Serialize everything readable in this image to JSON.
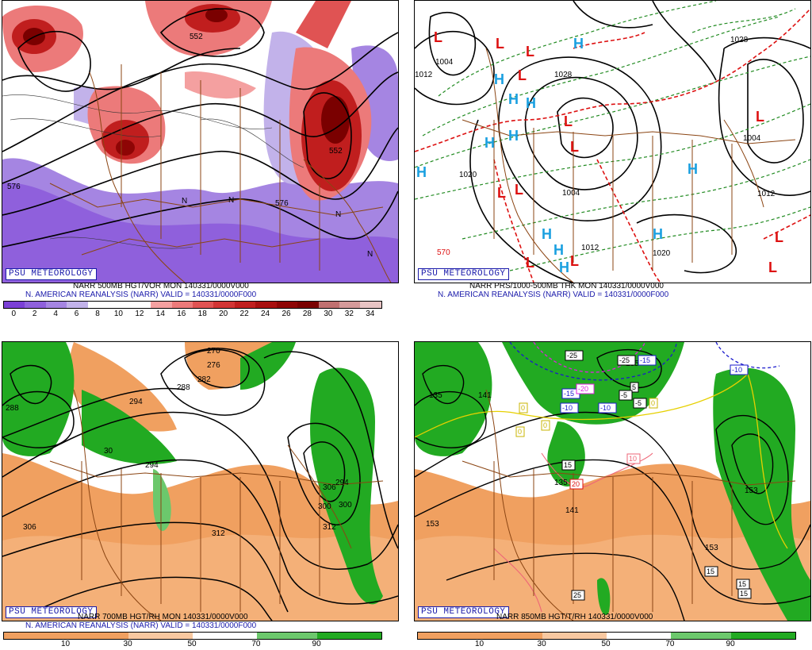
{
  "panels": [
    {
      "id": "p1",
      "logo": "PSU METEOROLOGY",
      "line1": "NARR 500MB HGT/VOR MON 140331/0000V000",
      "line2": "N. AMERICAN REANALYSIS (NARR) VALID = 140331/0000F000",
      "colorbar_labels": [
        "0",
        "2",
        "4",
        "6",
        "8",
        "10",
        "12",
        "14",
        "16",
        "18",
        "20",
        "22",
        "24",
        "26",
        "28",
        "30",
        "32",
        "34"
      ],
      "colorbar_colors": [
        "#7b3fd6",
        "#8f60dc",
        "#a585e2",
        "#c2b2ea",
        "#ffffff",
        "#ffffff",
        "#ffffff",
        "#f4a0a0",
        "#ec7a7a",
        "#e05353",
        "#d23535",
        "#c01e1e",
        "#a80f0f",
        "#8e0505",
        "#7a0000",
        "#c07070",
        "#d59a9a",
        "#e8c4c4"
      ],
      "map_labels": [
        "576",
        "576",
        "552",
        "552",
        "N",
        "N",
        "N",
        "N"
      ]
    },
    {
      "id": "p2",
      "logo": "PSU METEOROLOGY",
      "line1": "NARR PRS/1000-500MB THK MON 140331/0000V000",
      "line2": "N. AMERICAN REANALYSIS (NARR) VALID = 140331/0000F000",
      "map_labels": [
        "1004",
        "1020",
        "1004",
        "1012",
        "1020",
        "1028",
        "1004",
        "1012",
        "570",
        "1012",
        "1028"
      ],
      "highs": [
        "H",
        "H",
        "H",
        "H",
        "H",
        "H",
        "H",
        "H",
        "H",
        "H",
        "H",
        "H"
      ],
      "lows": [
        "L",
        "L",
        "L",
        "L",
        "L",
        "L",
        "L",
        "L",
        "L",
        "L",
        "L",
        "L",
        "L"
      ]
    },
    {
      "id": "p3",
      "logo": "PSU METEOROLOGY",
      "line1": "NARR 700MB HGT/RH MON 140331/0000V000",
      "line2": "N. AMERICAN REANALYSIS (NARR) VALID = 140331/0000F000",
      "colorbar_labels": [
        "10",
        "30",
        "50",
        "70",
        "90"
      ],
      "map_labels": [
        "270",
        "276",
        "282",
        "288",
        "294",
        "294",
        "300",
        "306",
        "312",
        "312",
        "306",
        "300",
        "294",
        "288",
        "30"
      ]
    },
    {
      "id": "p4",
      "logo": "PSU METEOROLOGY",
      "line1": "NARR 850MB HGT/T/RH 140331/0000V000",
      "colorbar_labels": [
        "10",
        "30",
        "50",
        "70",
        "90"
      ],
      "map_labels": [
        "135",
        "135",
        "141",
        "153",
        "141",
        "135",
        "153",
        "153"
      ],
      "boxed_labels": [
        "-25",
        "-25",
        "-15",
        "-20",
        "-10",
        "-5",
        "-10",
        "15",
        "20",
        "10",
        "-15",
        "25",
        "15",
        "15",
        "15",
        "0",
        "0",
        "0",
        "0",
        "5",
        "-5",
        "-10"
      ]
    }
  ],
  "colors": {
    "logo_blue": "#1a1aaa",
    "vort_red": "#c01e1e",
    "vort_purple": "#8f60dc",
    "rh_orange": "#f0a060",
    "rh_green": "#22aa22",
    "border_brown": "#8b4513",
    "high_blue": "#1aa0e0",
    "low_red": "#dd1111"
  }
}
